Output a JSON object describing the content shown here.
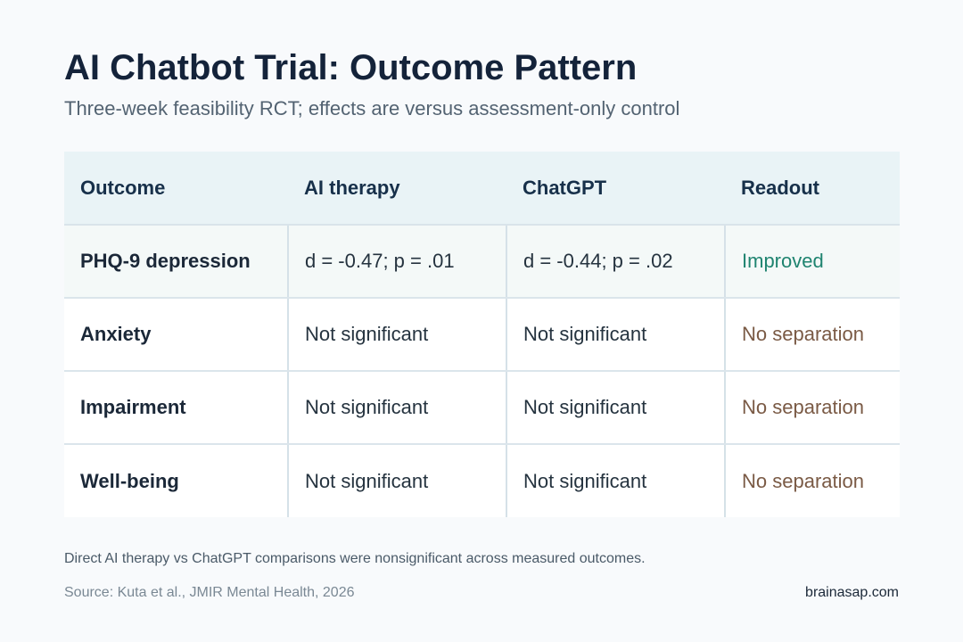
{
  "title": "AI Chatbot Trial: Outcome Pattern",
  "subtitle": "Three-week feasibility RCT; effects are versus assessment-only control",
  "table": {
    "headers": [
      "Outcome",
      "AI therapy",
      "ChatGPT",
      "Readout"
    ],
    "rows": [
      {
        "outcome": "PHQ-9 depression",
        "ai_therapy": "d = -0.47; p = .01",
        "chatgpt": "d = -0.44; p = .02",
        "readout": "Improved"
      },
      {
        "outcome": "Anxiety",
        "ai_therapy": "Not significant",
        "chatgpt": "Not significant",
        "readout": "No separation"
      },
      {
        "outcome": "Impairment",
        "ai_therapy": "Not significant",
        "chatgpt": "Not significant",
        "readout": "No separation"
      },
      {
        "outcome": "Well-being",
        "ai_therapy": "Not significant",
        "chatgpt": "Not significant",
        "readout": "No separation"
      }
    ]
  },
  "footnote": "Direct AI therapy vs ChatGPT comparisons were nonsignificant across measured outcomes.",
  "source": "Source: Kuta et al., JMIR Mental Health, 2026",
  "brand": "brainasap.com",
  "colors": {
    "background": "#f8fafc",
    "header_bg": "#e9f3f6",
    "improved": "#1f8470",
    "no_separation": "#7a5a45"
  }
}
